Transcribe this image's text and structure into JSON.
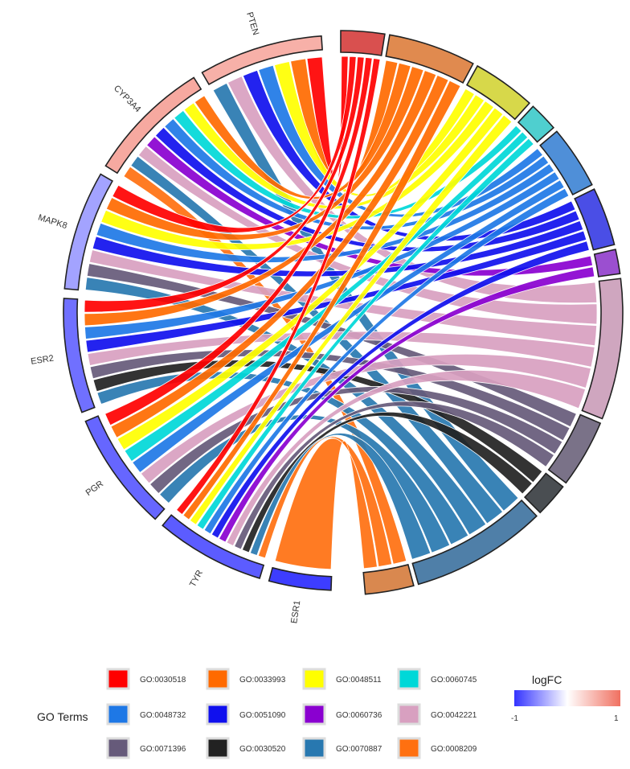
{
  "diagram": {
    "genes": [
      {
        "name": "PTEN",
        "logfc": 0.55
      },
      {
        "name": "CYP3A4",
        "logfc": 0.6
      },
      {
        "name": "MAPK8",
        "logfc": -0.45
      },
      {
        "name": "ESR2",
        "logfc": -0.7
      },
      {
        "name": "PGR",
        "logfc": -0.75
      },
      {
        "name": "TYR",
        "logfc": -0.8
      },
      {
        "name": "ESR1",
        "logfc": -0.95
      }
    ],
    "term_blocks": [
      {
        "term": "GO:0030518",
        "color": "#d9504f"
      },
      {
        "term": "GO:0033993",
        "color": "#e08a4f"
      },
      {
        "term": "GO:0048511",
        "color": "#d7d84a"
      },
      {
        "term": "GO:0060745",
        "color": "#4fcfcf"
      },
      {
        "term": "GO:0048732",
        "color": "#4f8fd8"
      },
      {
        "term": "GO:0051090",
        "color": "#4a4ee6"
      },
      {
        "term": "GO:0060736",
        "color": "#9b4fd0"
      },
      {
        "term": "GO:0042221",
        "color": "#cfa6bf"
      },
      {
        "term": "GO:0071396",
        "color": "#7a7288"
      },
      {
        "term": "GO:0030520",
        "color": "#4a4e52"
      },
      {
        "term": "GO:0070887",
        "color": "#4f7fa8"
      },
      {
        "term": "GO:0008209",
        "color": "#d9884f"
      }
    ]
  },
  "legend": {
    "title": "GO Terms",
    "terms": [
      {
        "id": "GO:0030518",
        "color": "#ff0000"
      },
      {
        "id": "GO:0033993",
        "color": "#ff6a00"
      },
      {
        "id": "GO:0048511",
        "color": "#ffff00"
      },
      {
        "id": "GO:0060745",
        "color": "#00d8d8"
      },
      {
        "id": "GO:0048732",
        "color": "#1e78e6"
      },
      {
        "id": "GO:0051090",
        "color": "#1010ee"
      },
      {
        "id": "GO:0060736",
        "color": "#8a00d0"
      },
      {
        "id": "GO:0042221",
        "color": "#d8a0c0"
      },
      {
        "id": "GO:0071396",
        "color": "#665a7a"
      },
      {
        "id": "GO:0030520",
        "color": "#222222"
      },
      {
        "id": "GO:0070887",
        "color": "#2878b0"
      },
      {
        "id": "GO:0008209",
        "color": "#ff7010"
      }
    ],
    "logfc": {
      "title": "logFC",
      "min_label": "-1",
      "max_label": "1",
      "low_color": "#3333ff",
      "mid_color": "#ffffff",
      "high_color": "#f07060"
    }
  }
}
